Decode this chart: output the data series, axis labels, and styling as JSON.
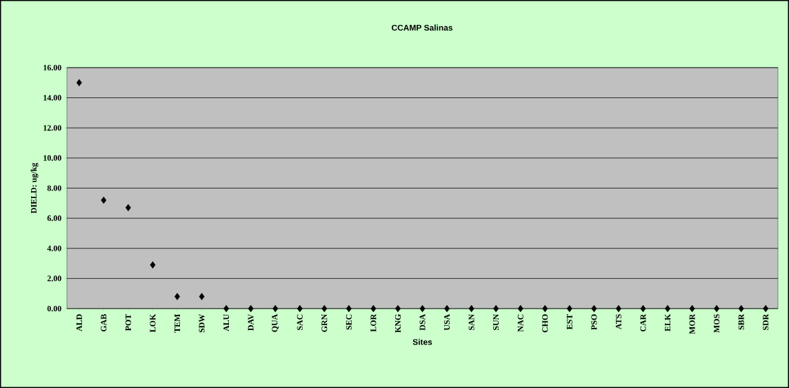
{
  "chart_data": {
    "type": "scatter",
    "title": "CCAMP Salinas",
    "xlabel": "Sites",
    "ylabel": "DIELD: ug/kg",
    "categories": [
      "ALD",
      "GAB",
      "POT",
      "LOK",
      "TEM",
      "SDW",
      "ALU",
      "DAV",
      "QUA",
      "SAC",
      "GRN",
      "SEC",
      "LOR",
      "KNG",
      "DSA",
      "USA",
      "SAN",
      "SUN",
      "NAC",
      "CHO",
      "EST",
      "PSO",
      "ATS",
      "CAR",
      "ELK",
      "MOR",
      "MOS",
      "SBR",
      "SDR"
    ],
    "values": [
      15.0,
      7.2,
      6.7,
      2.9,
      0.8,
      0.8,
      0,
      0,
      0,
      0,
      0,
      0,
      0,
      0,
      0,
      0,
      0,
      0,
      0,
      0,
      0,
      0,
      0,
      0,
      0,
      0,
      0,
      0,
      0
    ],
    "color": "#000000",
    "marker": "diamond",
    "grid": "y",
    "ylim": [
      0,
      16
    ],
    "yticks": [
      {
        "value": 0,
        "label": "0.00"
      },
      {
        "value": 2,
        "label": "2.00"
      },
      {
        "value": 4,
        "label": "4.00"
      },
      {
        "value": 6,
        "label": "6.00"
      },
      {
        "value": 8,
        "label": "8.00"
      },
      {
        "value": 10,
        "label": "10.00"
      },
      {
        "value": 12,
        "label": "12.00"
      },
      {
        "value": 14,
        "label": "14.00"
      },
      {
        "value": 16,
        "label": "16.00"
      }
    ]
  }
}
